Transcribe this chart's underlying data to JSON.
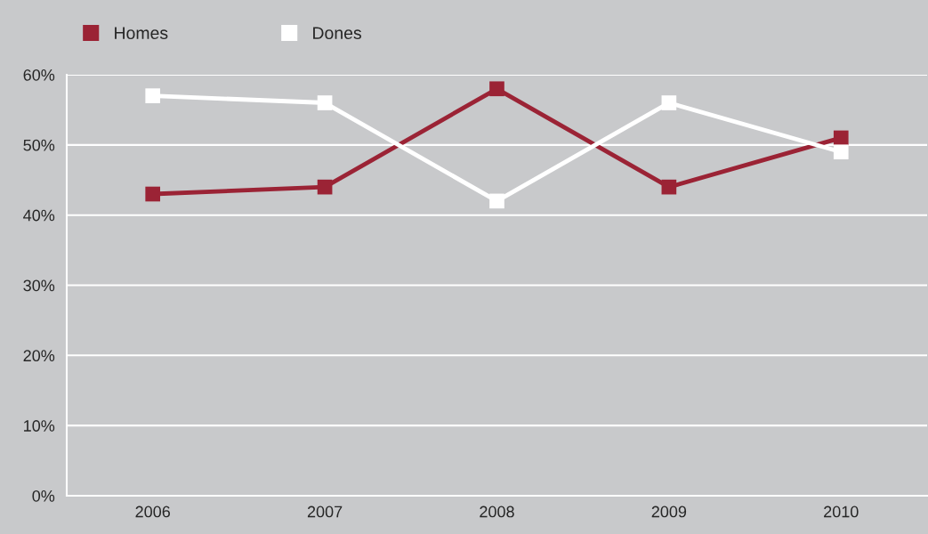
{
  "chart_data": {
    "type": "line",
    "categories": [
      "2006",
      "2007",
      "2008",
      "2009",
      "2010"
    ],
    "series": [
      {
        "name": "Homes",
        "color": "#9b2335",
        "values": [
          43,
          44,
          58,
          44,
          51
        ]
      },
      {
        "name": "Dones",
        "color": "#ffffff",
        "values": [
          57,
          56,
          42,
          56,
          49
        ]
      }
    ],
    "ylim": [
      0,
      60
    ],
    "yticks": [
      {
        "value": 0,
        "label": "0%"
      },
      {
        "value": 10,
        "label": "10%"
      },
      {
        "value": 20,
        "label": "20%"
      },
      {
        "value": 30,
        "label": "30%"
      },
      {
        "value": 40,
        "label": "40%"
      },
      {
        "value": 50,
        "label": "50%"
      },
      {
        "value": 60,
        "label": "60%"
      }
    ],
    "grid": "y",
    "legend": "top left",
    "marker": "square",
    "line_style": "solid"
  }
}
